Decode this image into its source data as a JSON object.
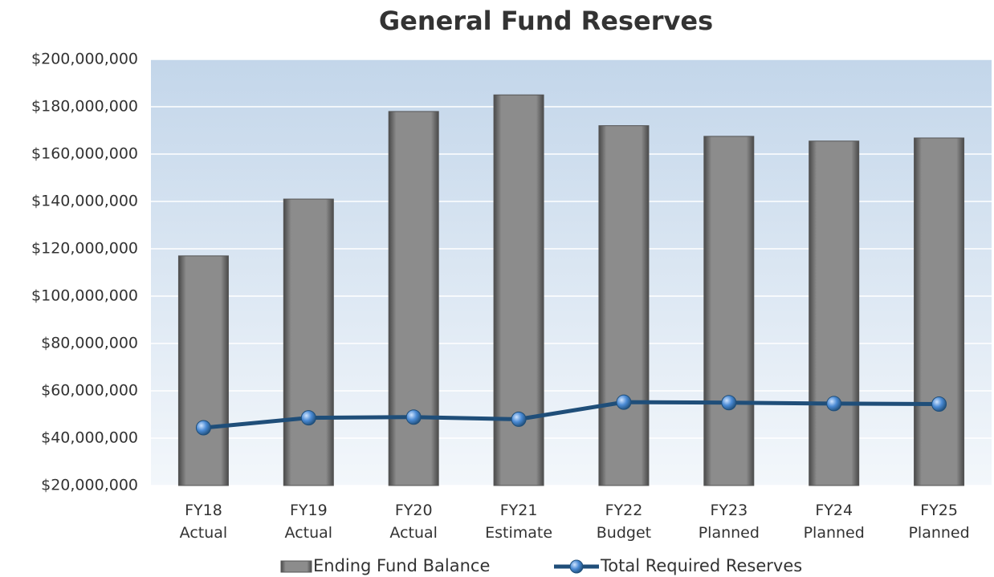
{
  "chart_data": {
    "type": "bar",
    "title": "General Fund Reserves",
    "categories": [
      "FY18 Actual",
      "FY19 Actual",
      "FY20 Actual",
      "FY21 Estimate",
      "FY22 Budget",
      "FY23 Planned",
      "FY24 Planned",
      "FY25 Planned"
    ],
    "series": [
      {
        "name": "Ending Fund Balance",
        "type": "bar",
        "color": "#8a8a8a",
        "values": [
          117000000,
          141000000,
          178000000,
          185000000,
          172000000,
          167500000,
          165500000,
          166800000
        ]
      },
      {
        "name": "Total Required Reserves",
        "type": "line",
        "color": "#1f4e79",
        "values": [
          44400000,
          48600000,
          48900000,
          48000000,
          55200000,
          55000000,
          54600000,
          54400000
        ]
      }
    ],
    "ylim": [
      20000000,
      200000000
    ],
    "yticks": [
      {
        "value": 20000000,
        "label": "$20,000,000"
      },
      {
        "value": 40000000,
        "label": "$40,000,000"
      },
      {
        "value": 60000000,
        "label": "$60,000,000"
      },
      {
        "value": 80000000,
        "label": "$80,000,000"
      },
      {
        "value": 100000000,
        "label": "$100,000,000"
      },
      {
        "value": 120000000,
        "label": "$120,000,000"
      },
      {
        "value": 140000000,
        "label": "$140,000,000"
      },
      {
        "value": 160000000,
        "label": "$160,000,000"
      },
      {
        "value": 180000000,
        "label": "$180,000,000"
      },
      {
        "value": 200000000,
        "label": "$200,000,000"
      }
    ],
    "grid": true,
    "legend": "bottom"
  }
}
